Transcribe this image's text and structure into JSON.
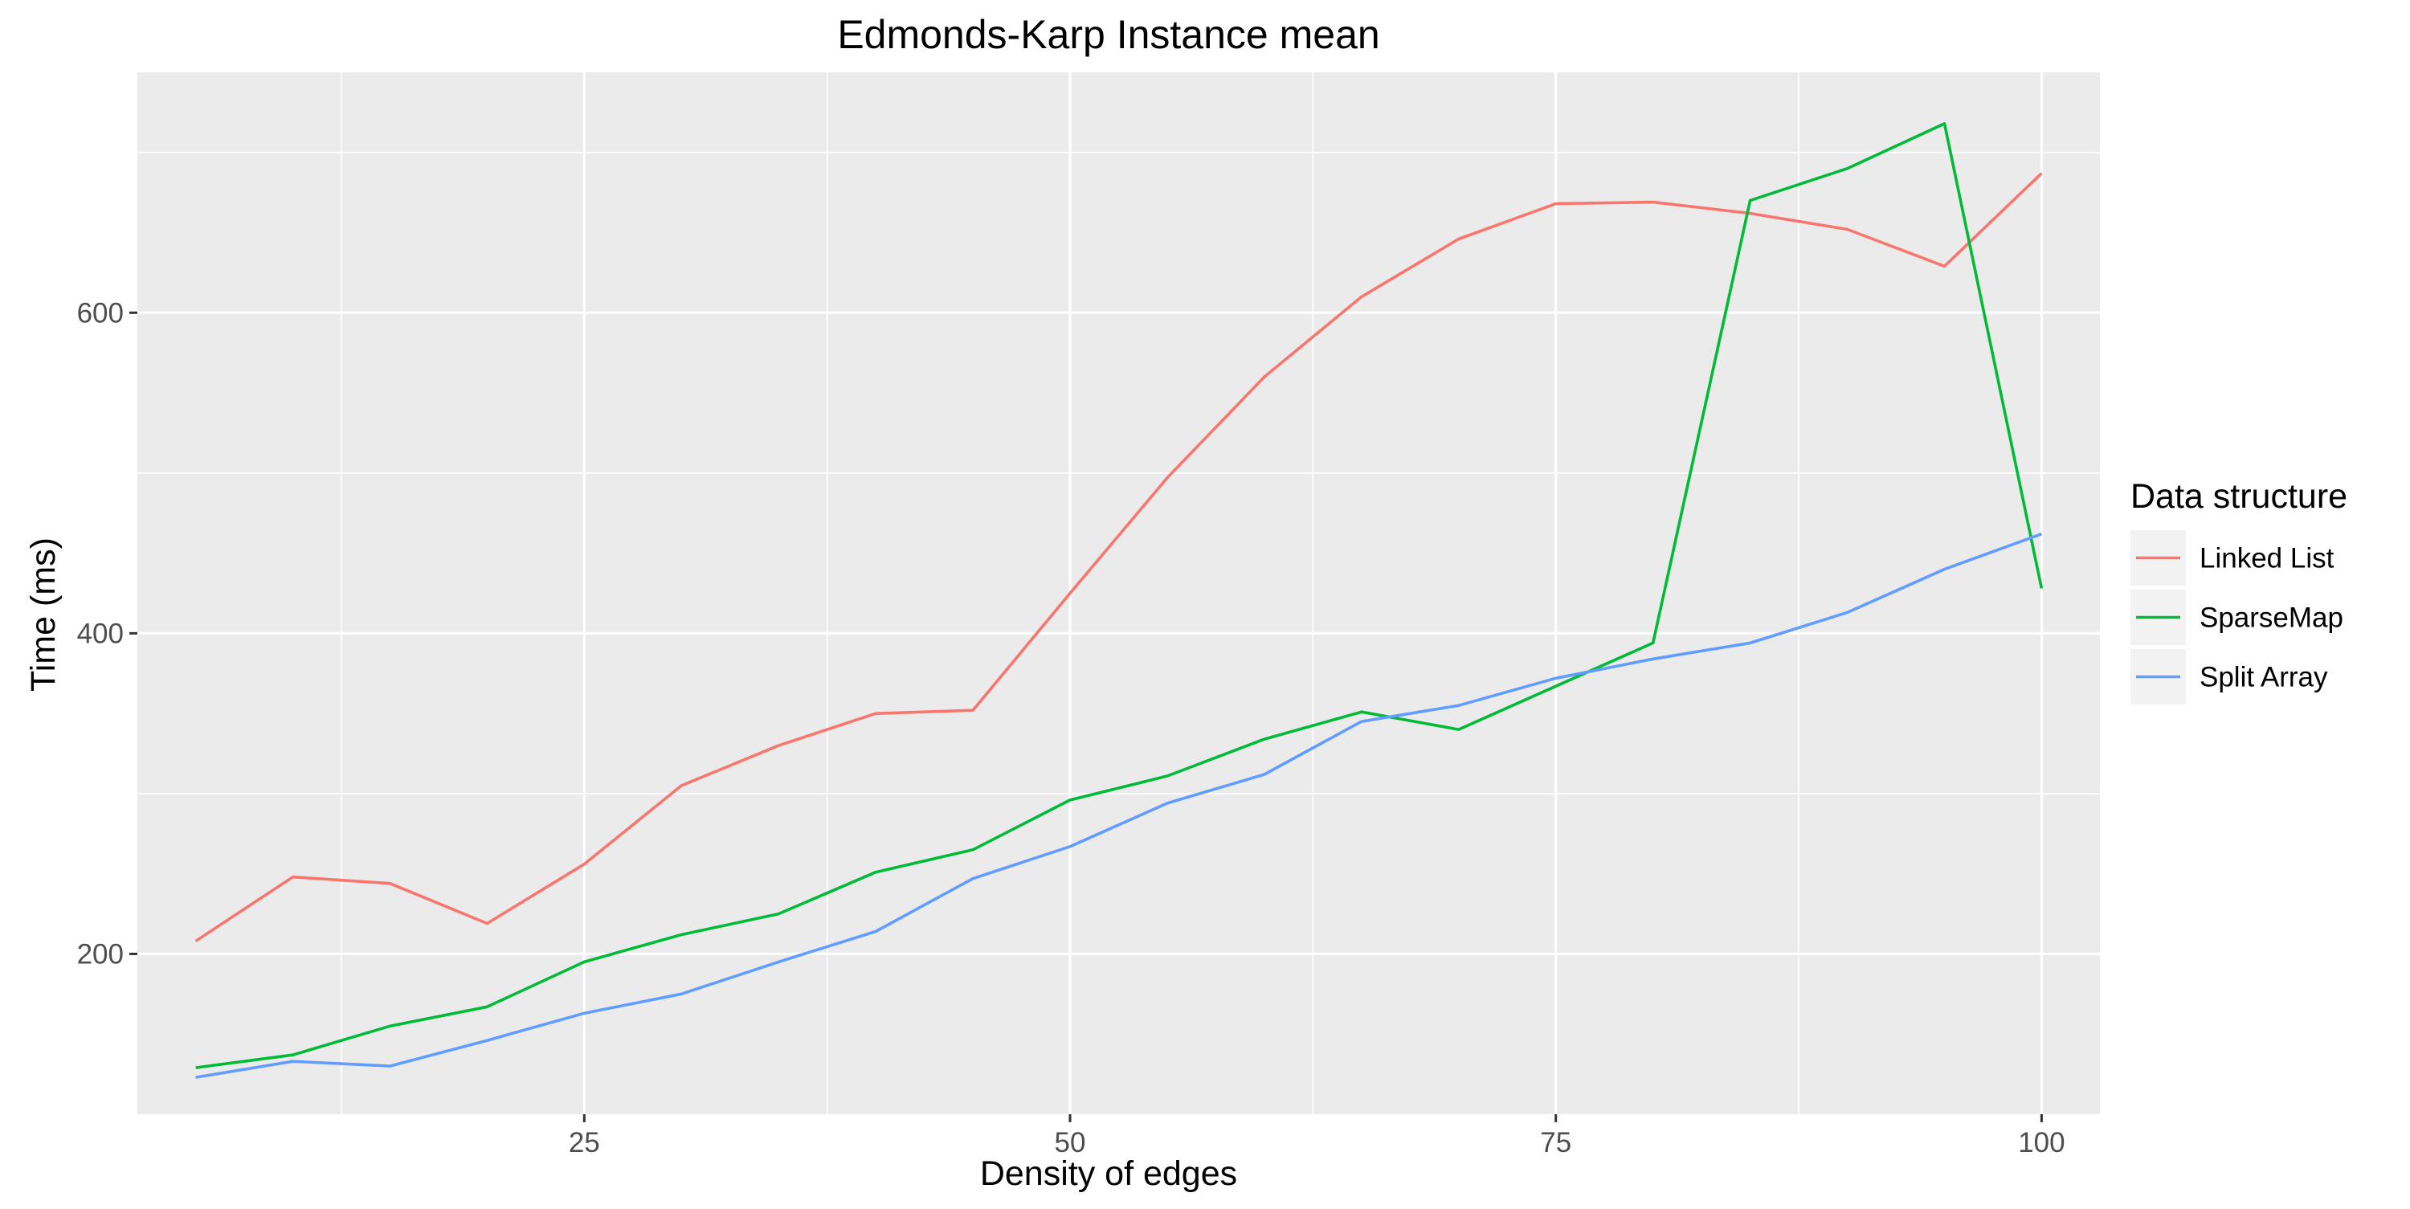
{
  "chart_data": {
    "type": "line",
    "title": "Edmonds-Karp Instance mean",
    "xlabel": "Density of edges",
    "ylabel": "Time (ms)",
    "xlim": [
      2,
      103
    ],
    "ylim": [
      100,
      750
    ],
    "x_ticks": [
      25,
      50,
      75,
      100
    ],
    "y_ticks": [
      200,
      400,
      600
    ],
    "grid": true,
    "background": "#ebebeb",
    "legend_title": "Data structure",
    "legend_position": "right",
    "x": [
      5,
      10,
      15,
      20,
      25,
      30,
      35,
      40,
      45,
      50,
      55,
      60,
      65,
      70,
      75,
      80,
      85,
      90,
      95,
      100
    ],
    "series": [
      {
        "name": "Linked List",
        "color": "#F8766D",
        "values": [
          208,
          248,
          244,
          219,
          256,
          305,
          330,
          350,
          352,
          425,
          497,
          560,
          610,
          646,
          668,
          669,
          662,
          652,
          629,
          687
        ]
      },
      {
        "name": "SparseMap",
        "color": "#00BA38",
        "values": [
          129,
          137,
          155,
          167,
          195,
          212,
          225,
          251,
          265,
          296,
          311,
          334,
          351,
          340,
          367,
          394,
          670,
          690,
          718,
          428
        ]
      },
      {
        "name": "Split Array",
        "color": "#619CFF",
        "values": [
          123,
          133,
          130,
          146,
          163,
          175,
          195,
          214,
          247,
          267,
          294,
          312,
          345,
          355,
          372,
          384,
          394,
          413,
          440,
          462
        ]
      }
    ]
  }
}
